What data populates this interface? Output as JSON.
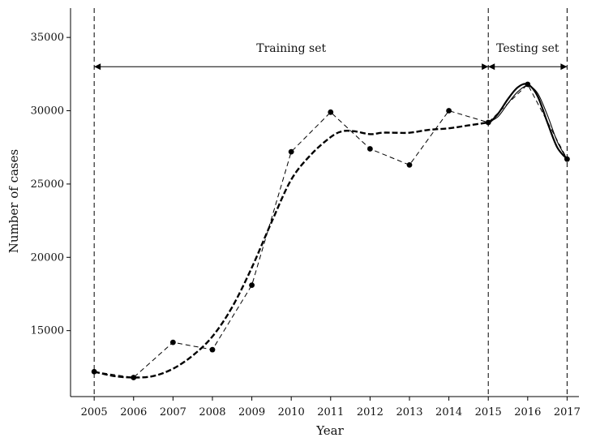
{
  "chart_data": {
    "type": "line",
    "xlabel": "Year",
    "ylabel": "Number of cases",
    "xlim": [
      2004.4,
      2017.3
    ],
    "ylim": [
      10500,
      37000
    ],
    "x_ticks": [
      2005,
      2006,
      2007,
      2008,
      2009,
      2010,
      2011,
      2012,
      2013,
      2014,
      2015,
      2016,
      2017
    ],
    "y_ticks": [
      15000,
      20000,
      25000,
      30000,
      35000
    ],
    "grid": false,
    "legend": "none",
    "series": [
      {
        "style": "thin-dashed-with-markers",
        "x": [
          2005,
          2006,
          2007,
          2008,
          2009,
          2010,
          2011,
          2012,
          2013,
          2014,
          2015,
          2016,
          2017
        ],
        "y": [
          12200,
          11800,
          14200,
          13700,
          18100,
          27200,
          29900,
          27400,
          26300,
          30000,
          29200,
          31800,
          26700
        ]
      },
      {
        "style": "thick-dashed",
        "x": [
          2005,
          2005.5,
          2006,
          2006.5,
          2007,
          2007.5,
          2008,
          2008.5,
          2009,
          2009.5,
          2010,
          2010.5,
          2011,
          2011.3,
          2011.6,
          2012,
          2012.3,
          2012.6,
          2013,
          2013.5,
          2014,
          2014.5,
          2015
        ],
        "y": [
          12200,
          11900,
          11800,
          11900,
          12400,
          13300,
          14600,
          16600,
          19300,
          22400,
          25300,
          27000,
          28200,
          28600,
          28600,
          28400,
          28500,
          28500,
          28500,
          28700,
          28800,
          29000,
          29200
        ]
      },
      {
        "style": "solid",
        "x": [
          2015,
          2015.25,
          2015.5,
          2015.75,
          2016,
          2016.25,
          2016.5,
          2016.75,
          2017
        ],
        "y": [
          29200,
          29600,
          30500,
          31300,
          31700,
          31200,
          29700,
          27900,
          26700
        ]
      },
      {
        "style": "thick-solid",
        "x": [
          2015,
          2015.25,
          2015.5,
          2015.75,
          2016,
          2016.25,
          2016.5,
          2016.75,
          2017
        ],
        "y": [
          29100,
          29800,
          30800,
          31600,
          31800,
          31000,
          29200,
          27500,
          26700
        ]
      }
    ],
    "vlines": [
      2005,
      2015,
      2017
    ],
    "annotations": [
      {
        "text": "Training set",
        "x_from": 2005,
        "x_to": 2015,
        "y": 33000,
        "label_y": 34300
      },
      {
        "text": "Testing set",
        "x_from": 2015,
        "x_to": 2017,
        "y": 33000,
        "label_y": 34300
      }
    ]
  }
}
